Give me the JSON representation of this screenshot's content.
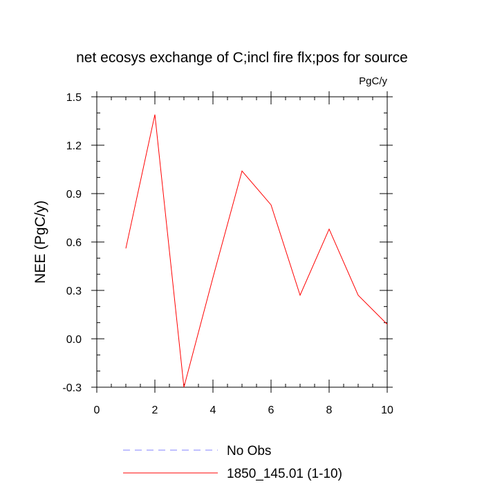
{
  "chart_data": {
    "type": "line",
    "title": "net ecosys exchange of C;incl fire flx;pos for source",
    "units_label": "PgC/y",
    "ylabel": "NEE  (PgC/y)",
    "xlabel": "",
    "xlim": [
      0,
      10
    ],
    "ylim": [
      -0.3,
      1.5
    ],
    "xticks": [
      0,
      2,
      4,
      6,
      8,
      10
    ],
    "xtick_labels": [
      "0",
      "2",
      "4",
      "6",
      "8",
      "10"
    ],
    "yticks": [
      -0.3,
      0.0,
      0.3,
      0.6,
      0.9,
      1.2,
      1.5
    ],
    "ytick_labels": [
      "-0.3",
      "0.0",
      "0.3",
      "0.6",
      "0.9",
      "1.2",
      "1.5"
    ],
    "grid": false,
    "legend_position": "bottom",
    "series": [
      {
        "name": "No Obs",
        "color": "#8080ff",
        "dash": "dashed",
        "x": [],
        "y": []
      },
      {
        "name": "1850_145.01 (1-10)",
        "color": "#ff0000",
        "dash": "solid",
        "x": [
          1,
          2,
          3,
          4,
          5,
          6,
          7,
          8,
          9,
          10
        ],
        "y": [
          0.56,
          1.39,
          -0.3,
          0.38,
          1.04,
          0.83,
          0.27,
          0.68,
          0.27,
          0.09
        ]
      }
    ]
  }
}
